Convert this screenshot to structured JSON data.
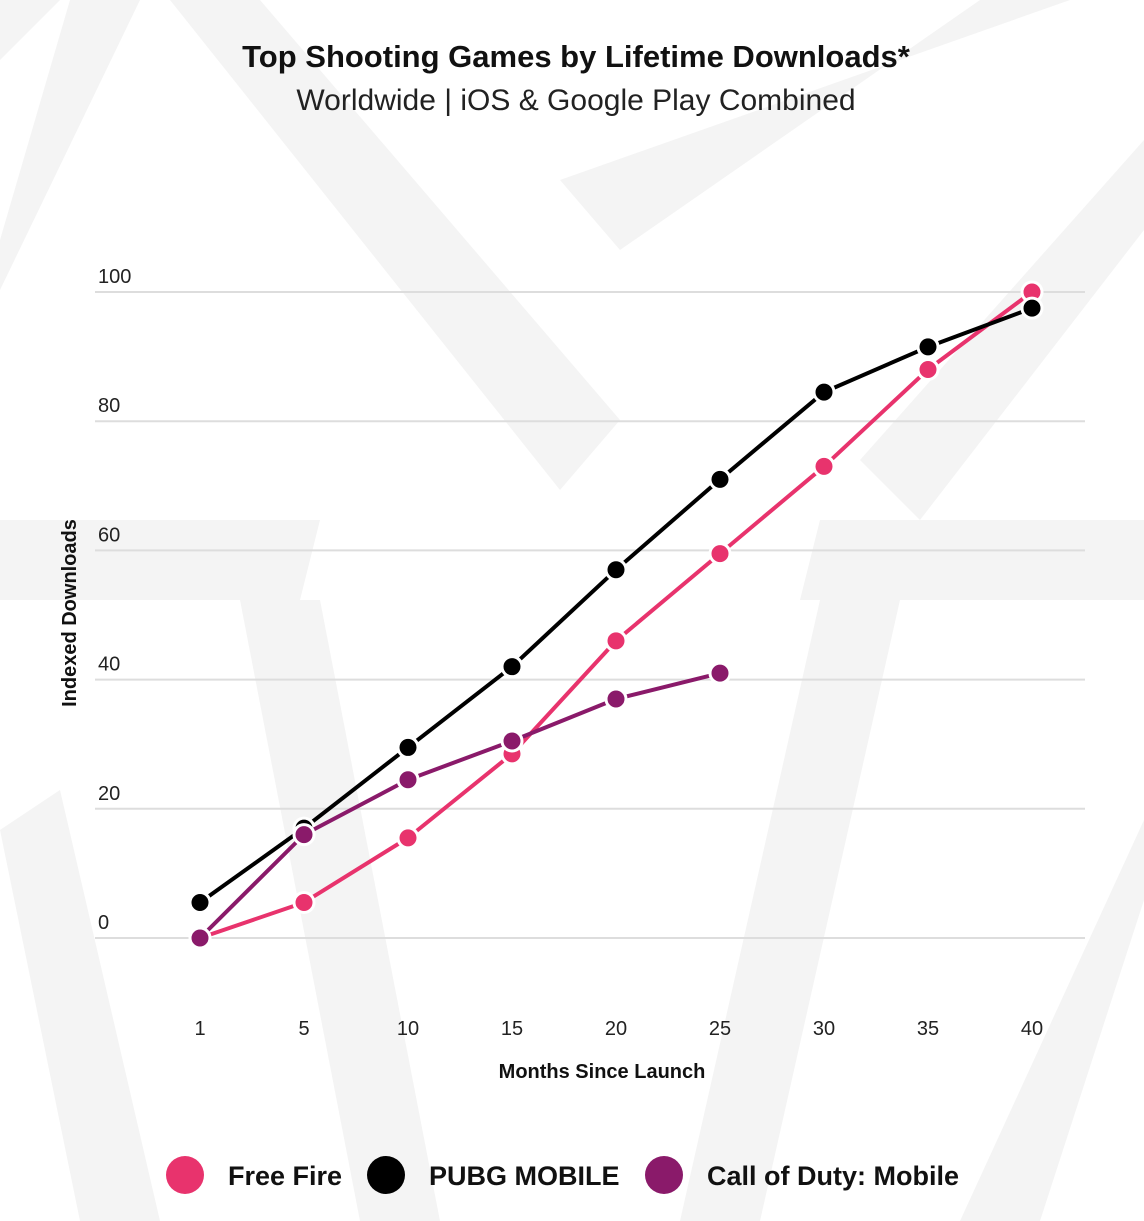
{
  "chart_data": {
    "type": "line",
    "title": "Top Shooting Games by Lifetime Downloads*",
    "subtitle": "Worldwide | iOS & Google Play Combined",
    "xlabel": "Months Since Launch",
    "ylabel": "Indexed Downloads",
    "x": [
      1,
      5,
      10,
      15,
      20,
      25,
      30,
      35,
      40
    ],
    "x_tick_labels": [
      "1",
      "5",
      "10",
      "15",
      "20",
      "25",
      "30",
      "35",
      "40"
    ],
    "y_ticks": [
      0,
      20,
      40,
      60,
      80,
      100
    ],
    "y_tick_labels": [
      "0",
      "20",
      "40",
      "60",
      "80",
      "100"
    ],
    "ylim": [
      0,
      100
    ],
    "grid": true,
    "legend_position": "bottom",
    "series": [
      {
        "name": "Free Fire",
        "color": "#e8336d",
        "values": [
          0,
          5.5,
          15.5,
          28.5,
          46,
          59.5,
          73,
          88,
          100
        ]
      },
      {
        "name": "PUBG MOBILE",
        "color": "#000000",
        "values": [
          5.5,
          17,
          29.5,
          42,
          57,
          71,
          84.5,
          91.5,
          97.5
        ]
      },
      {
        "name": "Call of Duty: Mobile",
        "color": "#8a1a6a",
        "values": [
          0,
          16,
          24.5,
          30.5,
          37,
          41,
          null,
          null,
          null
        ]
      }
    ]
  }
}
